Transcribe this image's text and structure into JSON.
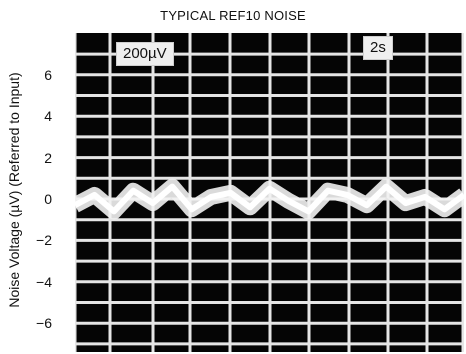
{
  "chart_data": {
    "type": "line",
    "title": "TYPICAL REF10 NOISE",
    "ylabel": "Noise Voltage (µV) (Referred to Input)",
    "xlabel": "",
    "yticks": [
      "6",
      "4",
      "2",
      "0",
      "−2",
      "−4",
      "−6"
    ],
    "ylim": [
      -8,
      8
    ],
    "grid": true,
    "volts_per_div_label": "200µV",
    "time_per_div_label": "2s",
    "series": [
      {
        "x": [
          0,
          1,
          2,
          3,
          4,
          5,
          6,
          7,
          8,
          9,
          10,
          11,
          12,
          13,
          14,
          15,
          16,
          17,
          18,
          19,
          20
        ],
        "values": [
          -0.3,
          0.2,
          -0.6,
          0.4,
          -0.2,
          0.6,
          -0.5,
          0.1,
          0.3,
          -0.4,
          0.5,
          -0.1,
          -0.6,
          0.4,
          0.2,
          -0.3,
          0.6,
          -0.2,
          0.1,
          -0.5,
          0.2
        ]
      }
    ]
  },
  "colors": {
    "screen": "#050505",
    "grid": "#e6e6e6",
    "trace": "#f2f2f2"
  }
}
